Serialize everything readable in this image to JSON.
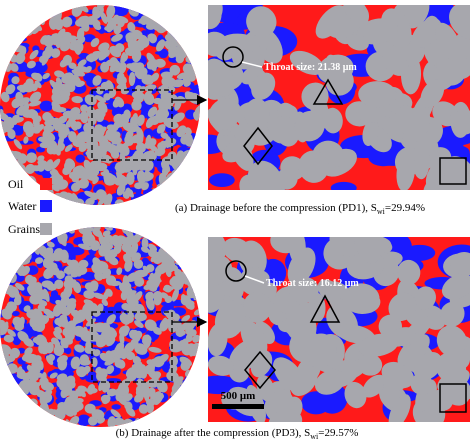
{
  "figure": {
    "legend": [
      {
        "label": "Oil",
        "color": "#ff1a1a"
      },
      {
        "label": "Water",
        "color": "#1a1aff"
      },
      {
        "label": "Grains",
        "color": "#a7a7ad"
      }
    ],
    "panels": [
      {
        "throat_label": "Throat size: 21.38 μm",
        "caption": {
          "text": "(a) Drainage before the compression (PD1), S",
          "subscript": "wi",
          "suffix": "=29.94%"
        }
      },
      {
        "throat_label": "Throat size: 16.12 μm",
        "scale_bar": "500 μm",
        "caption": {
          "text": "(b) Drainage after the compression (PD3), S",
          "subscript": "wi",
          "suffix": "=29.57%"
        }
      }
    ]
  }
}
